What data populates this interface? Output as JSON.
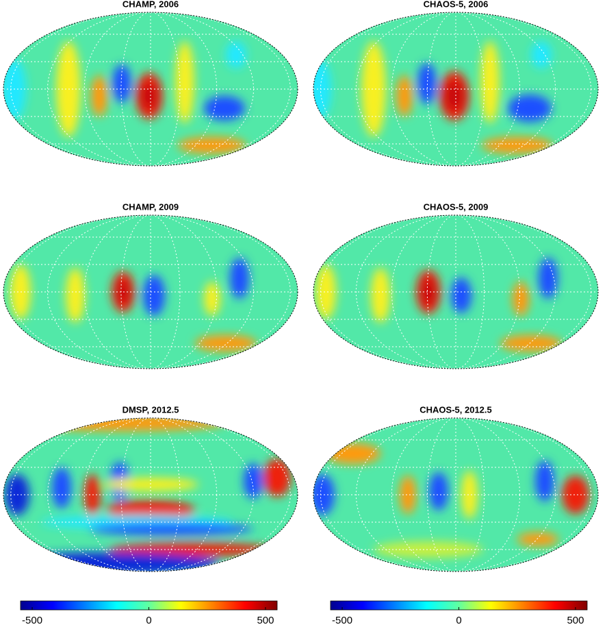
{
  "panels": [
    {
      "title": "CHAMP, 2006"
    },
    {
      "title": "CHAOS-5, 2006"
    },
    {
      "title": "CHAMP, 2009"
    },
    {
      "title": "CHAOS-5, 2009"
    },
    {
      "title": "DMSP, 2012.5"
    },
    {
      "title": "CHAOS-5, 2012.5"
    }
  ],
  "colorbars": [
    {
      "lim": [
        -550,
        550
      ],
      "ticks": [
        -500,
        0,
        500
      ]
    },
    {
      "lim": [
        -550,
        550
      ],
      "ticks": [
        -500,
        0,
        500
      ]
    }
  ]
}
